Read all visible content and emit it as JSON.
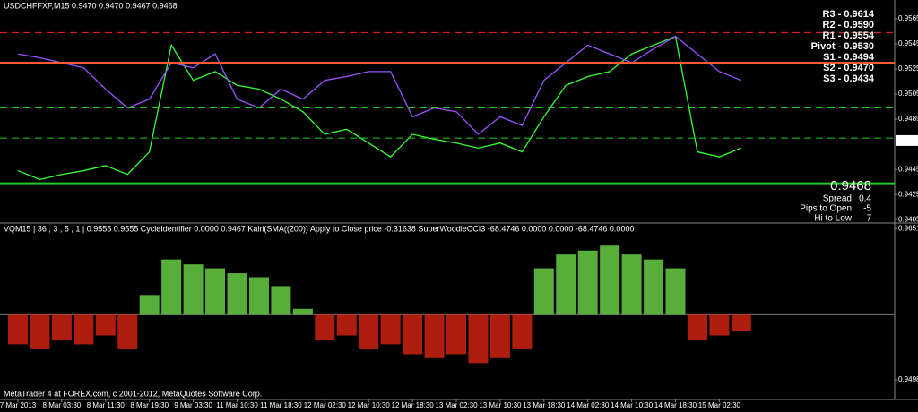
{
  "chart_data": [
    {
      "type": "line",
      "title": "USDCHFFXF,M15  0.9470 0.9470 0.9467 0.9468",
      "ylim": [
        0.9403,
        0.958
      ],
      "yticks": [
        0.9565,
        0.9545,
        0.9525,
        0.9505,
        0.9485,
        0.9445,
        0.9425,
        0.9405
      ],
      "series": [
        {
          "color": "#33ff33",
          "values": [
            0.9444,
            0.9437,
            0.9441,
            0.9444,
            0.9448,
            0.9441,
            0.9459,
            0.9544,
            0.9516,
            0.9523,
            0.9512,
            0.9509,
            0.9501,
            0.9491,
            0.9473,
            0.9477,
            0.9466,
            0.9455,
            0.9473,
            0.9469,
            0.9466,
            0.9462,
            0.9466,
            0.9459,
            0.9487,
            0.9512,
            0.9519,
            0.9523,
            0.9537,
            0.9544,
            0.9551,
            0.9459,
            0.9455,
            0.9462
          ]
        },
        {
          "color": "#9955ff",
          "values": [
            0.9537,
            0.9534,
            0.953,
            0.9526,
            0.9509,
            0.9494,
            0.9501,
            0.953,
            0.9526,
            0.9537,
            0.9501,
            0.9494,
            0.9509,
            0.9501,
            0.9516,
            0.9519,
            0.9523,
            0.9523,
            0.9487,
            0.9494,
            0.9491,
            0.9473,
            0.9487,
            0.948,
            0.9516,
            0.953,
            0.9544,
            0.9537,
            0.953,
            0.9541,
            0.9551,
            0.9537,
            0.9523,
            0.9516
          ]
        }
      ],
      "levels": [
        {
          "label": "R3 - 0.9614",
          "value": 0.9614,
          "color": "#ff2020",
          "dash": true
        },
        {
          "label": "R2 - 0.9590",
          "value": 0.959,
          "color": "#ff2020",
          "dash": true
        },
        {
          "label": "R1 - 0.9554",
          "value": 0.9554,
          "color": "#ff2020",
          "dash": true
        },
        {
          "label": "Pivot - 0.9530",
          "value": 0.953,
          "color": "#ff5a30",
          "dash": false
        },
        {
          "label": "S1 - 0.9494",
          "value": 0.9494,
          "color": "#22cc22",
          "dash": true
        },
        {
          "label": "S2 - 0.9470",
          "value": 0.947,
          "color": "#22cc22",
          "dash": true
        },
        {
          "label": "S3 - 0.9434",
          "value": 0.9434,
          "color": "#22cc22",
          "dash": false
        }
      ],
      "price_marker": 0.9468,
      "info": {
        "price": 0.9468,
        "rows": [
          {
            "label": "Spread",
            "value": 0.4,
            "color": "#ffee00"
          },
          {
            "label": "Pips to Open",
            "value": -5,
            "color": "#ff2020"
          },
          {
            "label": "Hi to Low",
            "value": 7,
            "color": "#3344ff"
          }
        ]
      }
    },
    {
      "type": "bar",
      "title": "VQM15 | 36 , 3 , 5 , 1 | 0.9555 0.9555 CycleIdentifier 0.0000 0.9467 Kairi(SMA((200)) Apply to Close price -0.31638 SuperWoodieCCI3 -68.4746 0.0000 0.0000 -68.4746 0.0000",
      "ylim": [
        0.9479,
        0.9656
      ],
      "yticks": [
        0.9651,
        0.9498
      ],
      "baseline": 0.9564,
      "positive_color": "#66cc44",
      "negative_color": "#cc2211",
      "categories": [
        "7 Mar 2013",
        null,
        "8 Mar 03:30",
        null,
        "8 Mar 11:30",
        null,
        "8 Mar 19:30",
        null,
        "9 Mar 03:30",
        null,
        "11 Mar 10:30",
        null,
        "11 Mar 18:30",
        null,
        "12 Mar 02:30",
        null,
        "12 Mar 10:30",
        null,
        "12 Mar 18:30",
        null,
        "13 Mar 02:30",
        null,
        "13 Mar 10:30",
        null,
        "13 Mar 18:30",
        null,
        "14 Mar 02:30",
        null,
        "14 Mar 10:30",
        null,
        "14 Mar 18:30",
        null,
        "15 Mar 02:30",
        null
      ],
      "values": [
        0.9534,
        0.9529,
        0.9538,
        0.9534,
        0.9543,
        0.9529,
        0.9584,
        0.962,
        0.9615,
        0.9611,
        0.9606,
        0.9602,
        0.9593,
        0.957,
        0.9538,
        0.9543,
        0.9529,
        0.9534,
        0.9524,
        0.952,
        0.9524,
        0.9515,
        0.952,
        0.9529,
        0.9611,
        0.9625,
        0.9629,
        0.9634,
        0.9625,
        0.962,
        0.9611,
        0.9538,
        0.9543,
        0.9547
      ],
      "footer": "MetaTrader 4 at FOREX.com, c 2001-2012, MetaQuotes Software Corp."
    }
  ]
}
